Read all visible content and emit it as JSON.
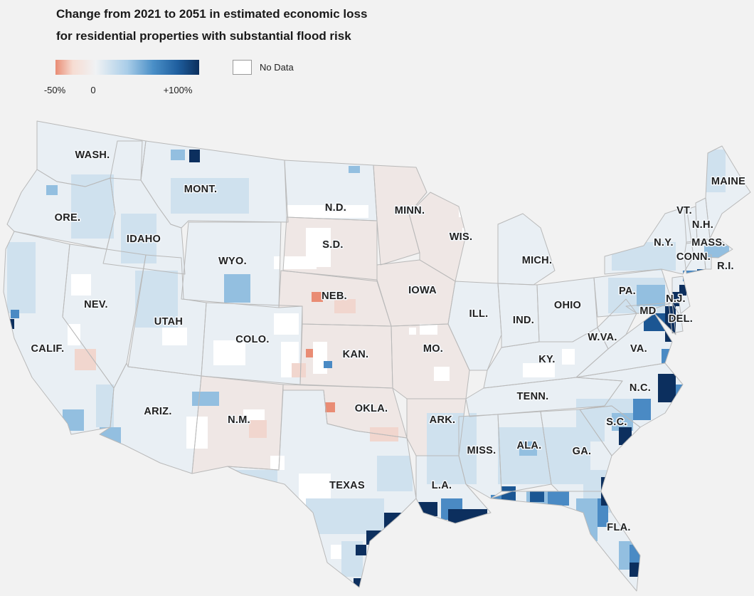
{
  "title": {
    "line1": "Change from 2021 to 2051 in estimated economic loss",
    "line2": "for residential properties with substantial flood risk"
  },
  "legend": {
    "ticks": [
      "-50%",
      "0",
      "+100%"
    ],
    "no_data_label": "No Data",
    "colors": [
      "#e98c74",
      "#f6dcd2",
      "#f0f2f4",
      "#a9cde8",
      "#4a8fc7",
      "#1f5f9f",
      "#0b2e5c"
    ]
  },
  "map": {
    "colors": {
      "base": "#e9eff4",
      "light_blue": "#cfe1ee",
      "mid_blue": "#93bfe0",
      "blue": "#4a8ac4",
      "dark_blue": "#1b5693",
      "navy": "#0c2f5e",
      "salmon": "#e98c74",
      "light_salmon": "#f1d6ce",
      "no_data": "#ffffff",
      "border": "#b9b9b9"
    },
    "states": [
      {
        "id": "wa",
        "label": "WASH."
      },
      {
        "id": "or",
        "label": "ORE."
      },
      {
        "id": "ca",
        "label": "CALIF."
      },
      {
        "id": "id",
        "label": "IDAHO"
      },
      {
        "id": "nv",
        "label": "NEV."
      },
      {
        "id": "mt",
        "label": "MONT."
      },
      {
        "id": "wy",
        "label": "WYO."
      },
      {
        "id": "ut",
        "label": "UTAH"
      },
      {
        "id": "az",
        "label": "ARIZ."
      },
      {
        "id": "co",
        "label": "COLO."
      },
      {
        "id": "nm",
        "label": "N.M."
      },
      {
        "id": "nd",
        "label": "N.D."
      },
      {
        "id": "sd",
        "label": "S.D."
      },
      {
        "id": "ne",
        "label": "NEB."
      },
      {
        "id": "ks",
        "label": "KAN."
      },
      {
        "id": "ok",
        "label": "OKLA."
      },
      {
        "id": "tx",
        "label": "TEXAS"
      },
      {
        "id": "mn",
        "label": "MINN."
      },
      {
        "id": "ia",
        "label": "IOWA"
      },
      {
        "id": "mo",
        "label": "MO."
      },
      {
        "id": "ar",
        "label": "ARK."
      },
      {
        "id": "la",
        "label": "L.A."
      },
      {
        "id": "wi",
        "label": "WIS."
      },
      {
        "id": "il",
        "label": "ILL."
      },
      {
        "id": "mi",
        "label": "MICH."
      },
      {
        "id": "in",
        "label": "IND."
      },
      {
        "id": "oh",
        "label": "OHIO"
      },
      {
        "id": "ky",
        "label": "KY."
      },
      {
        "id": "tn",
        "label": "TENN."
      },
      {
        "id": "ms",
        "label": "MISS."
      },
      {
        "id": "al",
        "label": "ALA."
      },
      {
        "id": "ga",
        "label": "GA."
      },
      {
        "id": "fl",
        "label": "FLA."
      },
      {
        "id": "sc",
        "label": "S.C."
      },
      {
        "id": "nc",
        "label": "N.C."
      },
      {
        "id": "va",
        "label": "VA."
      },
      {
        "id": "wv",
        "label": "W.VA."
      },
      {
        "id": "pa",
        "label": "PA."
      },
      {
        "id": "ny",
        "label": "N.Y."
      },
      {
        "id": "md",
        "label": "MD"
      },
      {
        "id": "de",
        "label": "DEL."
      },
      {
        "id": "nj",
        "label": "N.J."
      },
      {
        "id": "ct",
        "label": "CONN."
      },
      {
        "id": "ri",
        "label": "R.I."
      },
      {
        "id": "ma",
        "label": "MASS."
      },
      {
        "id": "vt",
        "label": "VT."
      },
      {
        "id": "nh",
        "label": "N.H."
      },
      {
        "id": "me",
        "label": "MAINE"
      }
    ]
  }
}
